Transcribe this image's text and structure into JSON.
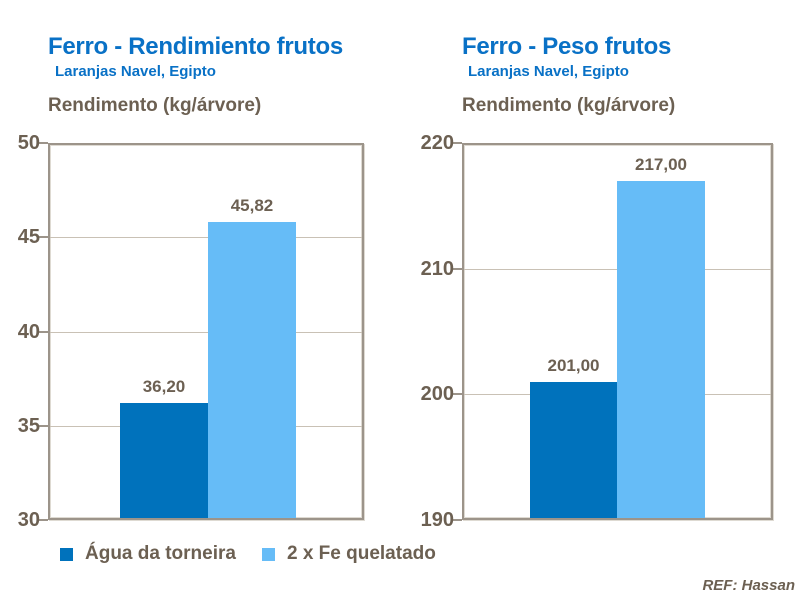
{
  "figure": {
    "background": "#FFFFFF",
    "ref_label": "REF: Hassan"
  },
  "colors": {
    "title_blue": "#0971C6",
    "series_dark": "#0072BC",
    "series_light": "#66BCF7",
    "label_brown": "#6C6052",
    "grid": "#C9C1B5",
    "frame": "#9C948A"
  },
  "legend": {
    "items": [
      {
        "label": "Água da torneira",
        "color": "#0072BC"
      },
      {
        "label": "2 x Fe quelatado",
        "color": "#66BCF7"
      }
    ]
  },
  "chart_data": [
    {
      "type": "bar",
      "title": "Ferro - Rendimiento frutos",
      "subtitle": "Laranjas Navel, Egipto",
      "ylabel": "Rendimento (kg/árvore)",
      "categories": [
        "Água da torneira",
        "2 x Fe quelatado"
      ],
      "values": [
        36.2,
        45.82
      ],
      "value_labels": [
        "36,20",
        "45,82"
      ],
      "ylim": [
        30,
        50
      ],
      "yticks": [
        50,
        45,
        40,
        35,
        30
      ],
      "grid": true,
      "legend_position": "bottom-left"
    },
    {
      "type": "bar",
      "title": "Ferro - Peso frutos",
      "subtitle": "Laranjas Navel, Egipto",
      "ylabel": "Rendimento (kg/árvore)",
      "categories": [
        "Água da torneira",
        "2 x Fe quelatado"
      ],
      "values": [
        201,
        217
      ],
      "value_labels": [
        "201,00",
        "217,00"
      ],
      "ylim": [
        190,
        220
      ],
      "yticks": [
        220,
        210,
        200,
        190
      ],
      "grid": true,
      "legend_position": "bottom-left"
    }
  ]
}
